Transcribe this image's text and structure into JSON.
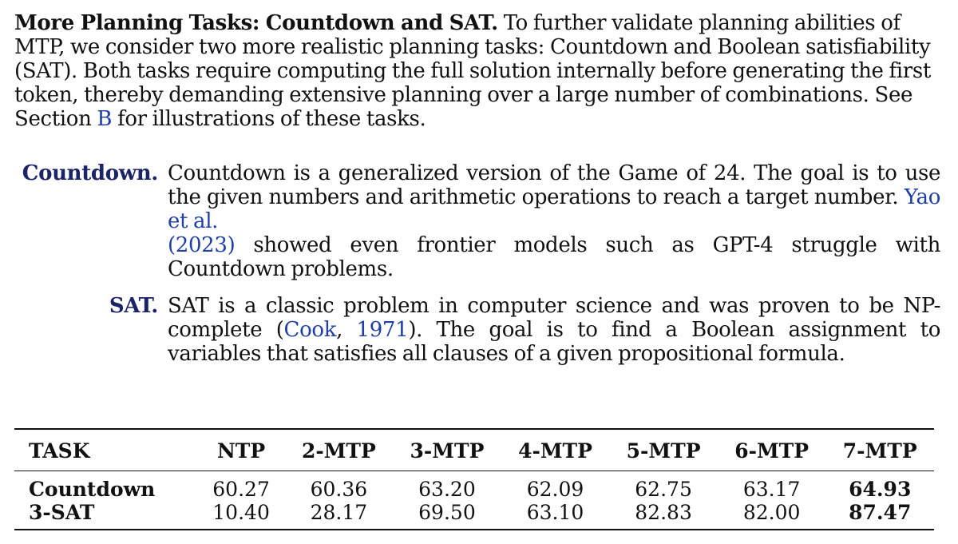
{
  "intro": {
    "heading": "More Planning Tasks: Countdown and SAT.",
    "text_before_link": " To further validate planning abilities of MTP, we consider two more realistic planning tasks: Countdown and Boolean satisfiability (SAT). Both tasks require computing the full solution internally before generating the first token, thereby demanding extensive planning over a large number of combinations. See Section ",
    "section_link": "B",
    "text_after_link": " for illustrations of these tasks."
  },
  "definitions": [
    {
      "term": "Countdown.",
      "text_before": "Countdown is a generalized version of the Game of 24. The goal is to use the given numbers and arithmetic operations to reach a target number. ",
      "cite1": "Yao et al.",
      "cite1_open": "(",
      "cite1_year": "2023",
      "cite1_close": ")",
      "text_after": " showed even frontier models such as GPT-4 struggle with Countdown problems."
    },
    {
      "term": "SAT.",
      "text_before": "SAT is a classic problem in computer science and was proven to be NP-complete (",
      "cite1": "Cook",
      "cite_sep": ", ",
      "cite1_year": "1971",
      "text_after": "). The goal is to find a Boolean assignment to variables that satisfies all clauses of a given propositional formula."
    }
  ],
  "table": {
    "headers": [
      "TASK",
      "NTP",
      "2-MTP",
      "3-MTP",
      "4-MTP",
      "5-MTP",
      "6-MTP",
      "7-MTP"
    ],
    "rows": [
      {
        "task": "Countdown",
        "values": [
          "60.27",
          "60.36",
          "63.20",
          "62.09",
          "62.75",
          "63.17",
          "64.93"
        ],
        "best_index": 6
      },
      {
        "task": "3-SAT",
        "values": [
          "10.40",
          "28.17",
          "69.50",
          "63.10",
          "82.83",
          "82.00",
          "87.47"
        ],
        "best_index": 6
      }
    ]
  },
  "colors": {
    "link": "#1f3fa6",
    "term": "#1b2466",
    "text": "#111111"
  }
}
